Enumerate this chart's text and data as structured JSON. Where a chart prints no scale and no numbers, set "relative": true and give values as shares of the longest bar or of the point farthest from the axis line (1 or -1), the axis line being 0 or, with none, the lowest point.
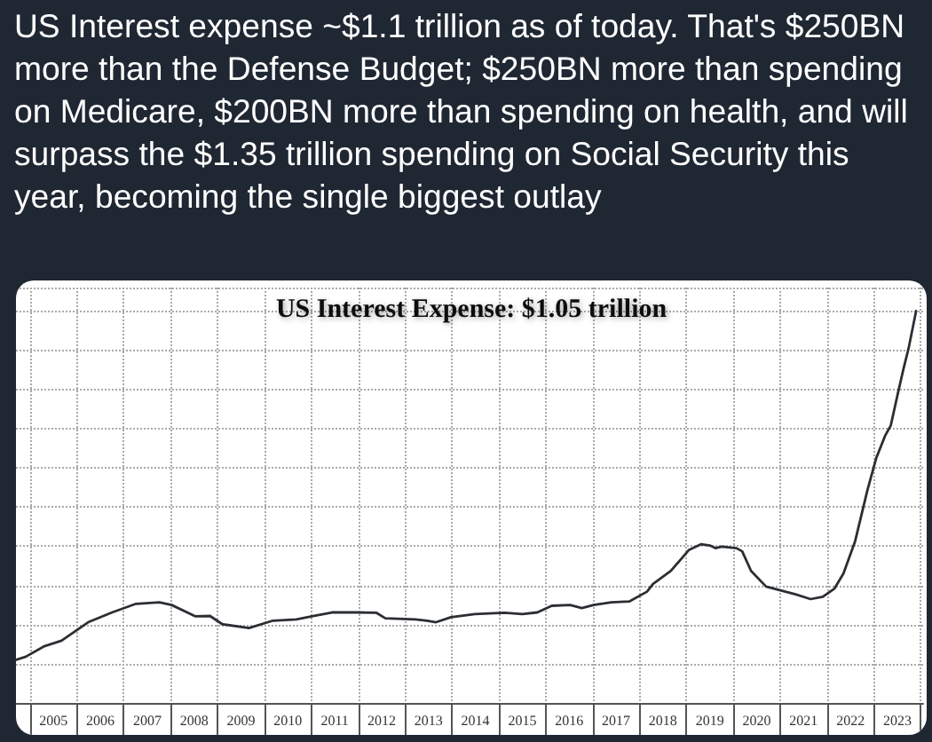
{
  "chart_data": {
    "type": "line",
    "title": "US Interest expense ~$1.1 trillion as of today. That's $250BN more than the Defense Budget; $250BN more than spending on Medicare, $200BN more than spending on health, and will surpass the $1.35 trillion spending on Social Security this year, becoming the single biggest outlay",
    "subtitle": "US Interest Expense: $1.05 trillion",
    "relative": true,
    "xlim": [
      2004.7,
      2024.05
    ],
    "xticks": [
      {
        "value": 2005.5,
        "label": "2005"
      },
      {
        "value": 2006.5,
        "label": "2006"
      },
      {
        "value": 2007.5,
        "label": "2007"
      },
      {
        "value": 2008.5,
        "label": "2008"
      },
      {
        "value": 2009.5,
        "label": "2009"
      },
      {
        "value": 2010.5,
        "label": "2010"
      },
      {
        "value": 2011.5,
        "label": "2011"
      },
      {
        "value": 2012.5,
        "label": "2012"
      },
      {
        "value": 2013.5,
        "label": "2013"
      },
      {
        "value": 2014.5,
        "label": "2014"
      },
      {
        "value": 2015.5,
        "label": "2015"
      },
      {
        "value": 2016.5,
        "label": "2016"
      },
      {
        "value": 2017.5,
        "label": "2017"
      },
      {
        "value": 2018.5,
        "label": "2018"
      },
      {
        "value": 2019.5,
        "label": "2019"
      },
      {
        "value": 2020.5,
        "label": "2020"
      },
      {
        "value": 2021.5,
        "label": "2021"
      },
      {
        "value": 2022.5,
        "label": "2022"
      },
      {
        "value": 2023.5,
        "label": "2023"
      },
      {
        "value": 2005,
        "label": null
      },
      {
        "value": 2006,
        "label": null
      },
      {
        "value": 2007,
        "label": null
      },
      {
        "value": 2008,
        "label": null
      },
      {
        "value": 2009,
        "label": null
      },
      {
        "value": 2010,
        "label": null
      },
      {
        "value": 2011,
        "label": null
      },
      {
        "value": 2012,
        "label": null
      },
      {
        "value": 2013,
        "label": null
      },
      {
        "value": 2014,
        "label": null
      },
      {
        "value": 2015,
        "label": null
      },
      {
        "value": 2016,
        "label": null
      },
      {
        "value": 2017,
        "label": null
      },
      {
        "value": 2018,
        "label": null
      },
      {
        "value": 2019,
        "label": null
      },
      {
        "value": 2020,
        "label": null
      },
      {
        "value": 2021,
        "label": null
      },
      {
        "value": 2022,
        "label": null
      },
      {
        "value": 2023,
        "label": null
      },
      {
        "value": 2024,
        "label": null
      }
    ],
    "grid": true,
    "marker": "none",
    "line_style": "solid",
    "series": [
      {
        "color": "#2b2f33",
        "x": [
          2004.7,
          2004.91,
          2005.29,
          2005.67,
          2006.24,
          2006.75,
          2007.26,
          2007.76,
          2008.02,
          2008.53,
          2008.84,
          2009.1,
          2009.67,
          2010.18,
          2010.68,
          2011.06,
          2011.44,
          2011.95,
          2012.39,
          2012.58,
          2013.22,
          2013.47,
          2013.66,
          2013.98,
          2014.49,
          2015.12,
          2015.5,
          2015.82,
          2016.13,
          2016.52,
          2016.77,
          2017.02,
          2017.4,
          2017.78,
          2018.16,
          2018.29,
          2018.67,
          2019.05,
          2019.31,
          2019.5,
          2019.62,
          2019.75,
          2020.07,
          2020.19,
          2020.38,
          2020.7,
          2021.33,
          2021.65,
          2021.91,
          2022.16,
          2022.35,
          2022.6,
          2022.86,
          2023.05,
          2023.24,
          2023.36,
          2023.5,
          2023.63,
          2023.74,
          2023.9
        ],
        "values": [
          0.11,
          0.118,
          0.144,
          0.159,
          0.206,
          0.231,
          0.253,
          0.257,
          0.25,
          0.221,
          0.222,
          0.201,
          0.191,
          0.21,
          0.213,
          0.222,
          0.231,
          0.231,
          0.23,
          0.216,
          0.213,
          0.21,
          0.206,
          0.219,
          0.227,
          0.23,
          0.227,
          0.231,
          0.248,
          0.25,
          0.242,
          0.25,
          0.257,
          0.259,
          0.284,
          0.304,
          0.337,
          0.39,
          0.405,
          0.402,
          0.395,
          0.399,
          0.395,
          0.387,
          0.337,
          0.297,
          0.277,
          0.265,
          0.271,
          0.292,
          0.33,
          0.413,
          0.542,
          0.625,
          0.682,
          0.708,
          0.784,
          0.852,
          0.905,
          1
        ]
      }
    ]
  }
}
